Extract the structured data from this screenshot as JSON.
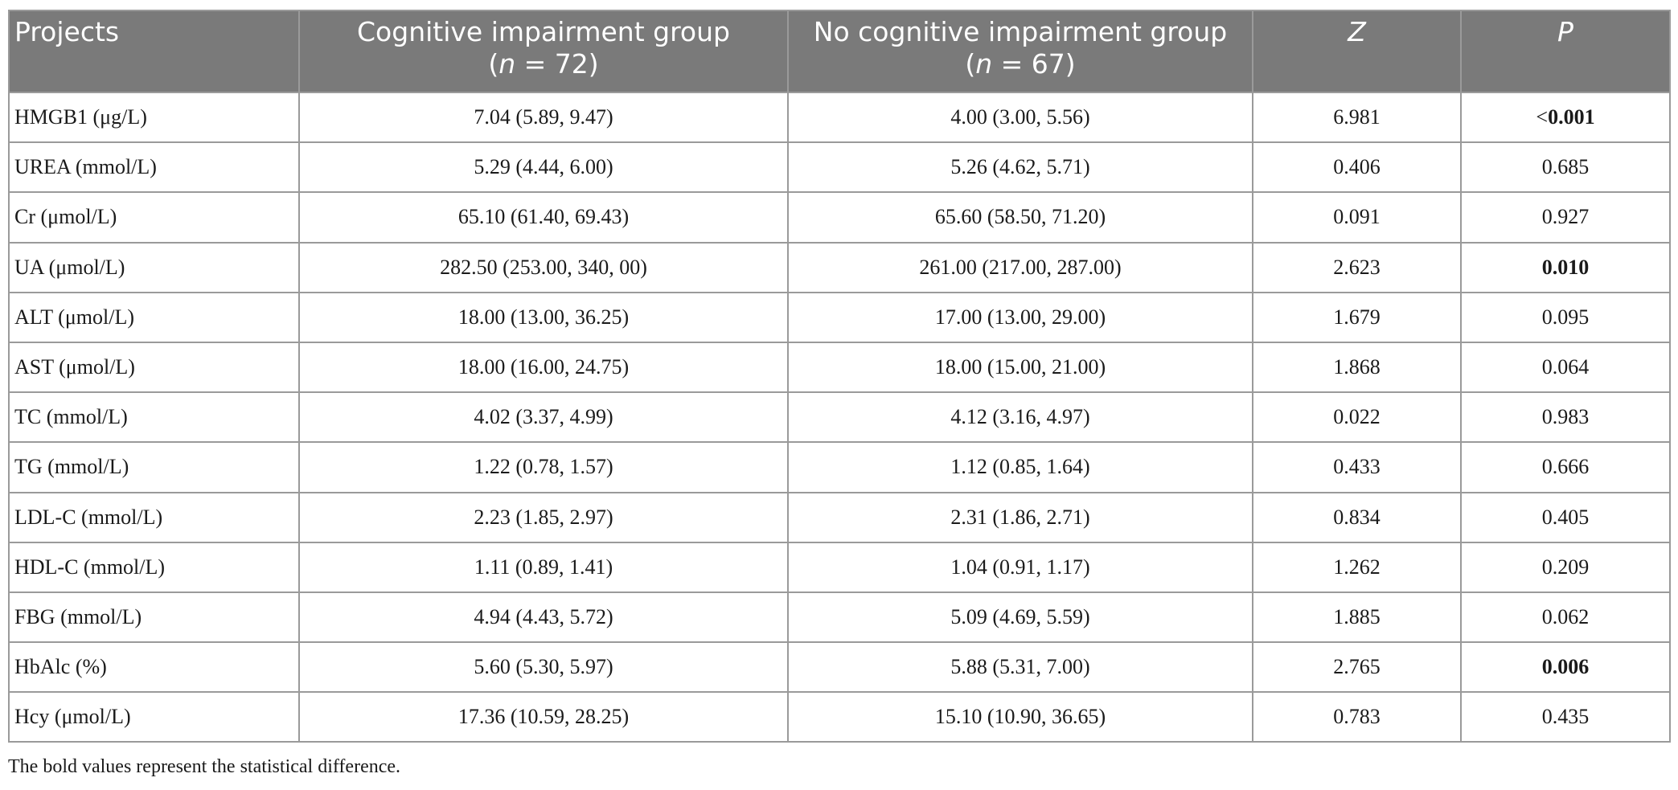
{
  "table": {
    "headers": [
      {
        "line1": "Projects",
        "n_prefix": "",
        "n_value": ""
      },
      {
        "line1": "Cognitive impairment group",
        "n_prefix": "n",
        "n_value": " = 72)"
      },
      {
        "line1": "No cognitive impairment group",
        "n_prefix": "n",
        "n_value": " = 67)"
      },
      {
        "line1": "Z",
        "n_prefix": "",
        "n_value": ""
      },
      {
        "line1": "P",
        "n_prefix": "",
        "n_value": ""
      }
    ],
    "rows": [
      {
        "project": "HMGB1 (μg/L)",
        "cognitive": "7.04 (5.89, 9.47)",
        "no_cognitive": "4.00 (3.00, 5.56)",
        "z": "6.981",
        "p_prefix": "<",
        "p": "0.001",
        "p_bold": true
      },
      {
        "project": "UREA (mmol/L)",
        "cognitive": "5.29 (4.44, 6.00)",
        "no_cognitive": "5.26 (4.62, 5.71)",
        "z": "0.406",
        "p_prefix": "",
        "p": "0.685",
        "p_bold": false
      },
      {
        "project": "Cr (μmol/L)",
        "cognitive": "65.10 (61.40, 69.43)",
        "no_cognitive": "65.60 (58.50, 71.20)",
        "z": "0.091",
        "p_prefix": "",
        "p": "0.927",
        "p_bold": false
      },
      {
        "project": "UA (μmol/L)",
        "cognitive": "282.50 (253.00, 340, 00)",
        "no_cognitive": "261.00 (217.00, 287.00)",
        "z": "2.623",
        "p_prefix": "",
        "p": "0.010",
        "p_bold": true
      },
      {
        "project": "ALT (μmol/L)",
        "cognitive": "18.00 (13.00, 36.25)",
        "no_cognitive": "17.00 (13.00, 29.00)",
        "z": "1.679",
        "p_prefix": "",
        "p": "0.095",
        "p_bold": false
      },
      {
        "project": "AST (μmol/L)",
        "cognitive": "18.00 (16.00, 24.75)",
        "no_cognitive": "18.00 (15.00, 21.00)",
        "z": "1.868",
        "p_prefix": "",
        "p": "0.064",
        "p_bold": false
      },
      {
        "project": "TC (mmol/L)",
        "cognitive": "4.02 (3.37, 4.99)",
        "no_cognitive": "4.12 (3.16, 4.97)",
        "z": "0.022",
        "p_prefix": "",
        "p": "0.983",
        "p_bold": false
      },
      {
        "project": "TG (mmol/L)",
        "cognitive": "1.22 (0.78, 1.57)",
        "no_cognitive": "1.12 (0.85, 1.64)",
        "z": "0.433",
        "p_prefix": "",
        "p": "0.666",
        "p_bold": false
      },
      {
        "project": "LDL-C (mmol/L)",
        "cognitive": "2.23 (1.85, 2.97)",
        "no_cognitive": "2.31 (1.86, 2.71)",
        "z": "0.834",
        "p_prefix": "",
        "p": "0.405",
        "p_bold": false
      },
      {
        "project": "HDL-C (mmol/L)",
        "cognitive": "1.11 (0.89, 1.41)",
        "no_cognitive": "1.04 (0.91, 1.17)",
        "z": "1.262",
        "p_prefix": "",
        "p": "0.209",
        "p_bold": false
      },
      {
        "project": "FBG (mmol/L)",
        "cognitive": "4.94 (4.43, 5.72)",
        "no_cognitive": "5.09 (4.69, 5.59)",
        "z": "1.885",
        "p_prefix": "",
        "p": "0.062",
        "p_bold": false
      },
      {
        "project": "HbAlc (%)",
        "cognitive": "5.60 (5.30, 5.97)",
        "no_cognitive": "5.88 (5.31, 7.00)",
        "z": "2.765",
        "p_prefix": "",
        "p": "0.006",
        "p_bold": true
      },
      {
        "project": "Hcy (μmol/L)",
        "cognitive": "17.36 (10.59, 28.25)",
        "no_cognitive": "15.10 (10.90, 36.65)",
        "z": "0.783",
        "p_prefix": "",
        "p": "0.435",
        "p_bold": false
      }
    ]
  },
  "footnote": "The bold values represent the statistical difference."
}
